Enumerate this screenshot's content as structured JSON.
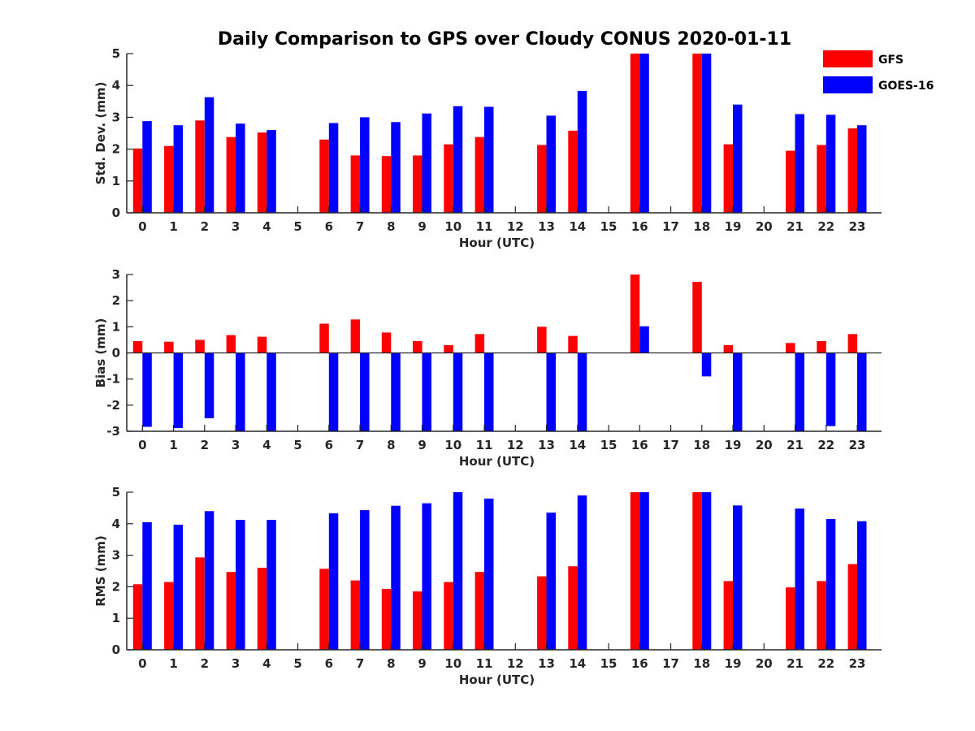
{
  "title": "Daily Comparison to GPS over Cloudy CONUS 2020-01-11",
  "legend": [
    {
      "name": "GFS",
      "color": "#ff0000"
    },
    {
      "name": "GOES-16",
      "color": "#0000ff"
    }
  ],
  "chart_data": [
    {
      "type": "bar",
      "categories": [
        "0",
        "1",
        "2",
        "3",
        "4",
        "5",
        "6",
        "7",
        "8",
        "9",
        "10",
        "11",
        "12",
        "13",
        "14",
        "15",
        "16",
        "17",
        "18",
        "19",
        "20",
        "21",
        "22",
        "23"
      ],
      "xlabel": "Hour (UTC)",
      "ylabel": "Std. Dev. (mm)",
      "ylim": [
        0,
        5
      ],
      "yticks": [
        0,
        1,
        2,
        3,
        4,
        5
      ],
      "series": [
        {
          "name": "GFS",
          "color": "#ff0000",
          "values": [
            2.02,
            2.1,
            2.9,
            2.38,
            2.52,
            null,
            2.3,
            1.8,
            1.78,
            1.8,
            2.15,
            2.38,
            null,
            2.13,
            2.58,
            null,
            5.0,
            null,
            5.0,
            2.15,
            null,
            1.95,
            2.13,
            2.65
          ]
        },
        {
          "name": "GOES-16",
          "color": "#0000ff",
          "values": [
            2.88,
            2.75,
            3.63,
            2.8,
            2.6,
            null,
            2.82,
            3.0,
            2.85,
            3.12,
            3.35,
            3.33,
            null,
            3.05,
            3.83,
            null,
            5.0,
            null,
            5.0,
            3.4,
            null,
            3.1,
            3.08,
            2.75
          ]
        }
      ]
    },
    {
      "type": "bar",
      "categories": [
        "0",
        "1",
        "2",
        "3",
        "4",
        "5",
        "6",
        "7",
        "8",
        "9",
        "10",
        "11",
        "12",
        "13",
        "14",
        "15",
        "16",
        "17",
        "18",
        "19",
        "20",
        "21",
        "22",
        "23"
      ],
      "xlabel": "Hour (UTC)",
      "ylabel": "Bias (mm)",
      "ylim": [
        -3,
        3
      ],
      "yticks": [
        -3,
        -2,
        -1,
        0,
        1,
        2,
        3
      ],
      "series": [
        {
          "name": "GFS",
          "color": "#ff0000",
          "values": [
            0.45,
            0.43,
            0.5,
            0.68,
            0.62,
            null,
            1.12,
            1.28,
            0.78,
            0.45,
            0.3,
            0.72,
            null,
            1.0,
            0.65,
            null,
            3.0,
            null,
            2.72,
            0.3,
            null,
            0.38,
            0.45,
            0.72
          ]
        },
        {
          "name": "GOES-16",
          "color": "#0000ff",
          "values": [
            -2.83,
            -2.88,
            -2.5,
            -3.0,
            -3.0,
            null,
            -3.0,
            -3.0,
            -3.0,
            -3.0,
            -3.0,
            -3.0,
            null,
            -3.0,
            -3.0,
            null,
            1.02,
            null,
            -0.9,
            -3.0,
            null,
            -3.0,
            -2.8,
            -3.0
          ]
        }
      ]
    },
    {
      "type": "bar",
      "categories": [
        "0",
        "1",
        "2",
        "3",
        "4",
        "5",
        "6",
        "7",
        "8",
        "9",
        "10",
        "11",
        "12",
        "13",
        "14",
        "15",
        "16",
        "17",
        "18",
        "19",
        "20",
        "21",
        "22",
        "23"
      ],
      "xlabel": "Hour (UTC)",
      "ylabel": "RMS (mm)",
      "ylim": [
        0,
        5
      ],
      "yticks": [
        0,
        1,
        2,
        3,
        4,
        5
      ],
      "series": [
        {
          "name": "GFS",
          "color": "#ff0000",
          "values": [
            2.08,
            2.15,
            2.93,
            2.47,
            2.6,
            null,
            2.57,
            2.2,
            1.93,
            1.85,
            2.15,
            2.47,
            null,
            2.33,
            2.65,
            null,
            5.0,
            null,
            5.0,
            2.18,
            null,
            1.98,
            2.18,
            2.72
          ]
        },
        {
          "name": "GOES-16",
          "color": "#0000ff",
          "values": [
            4.05,
            3.97,
            4.4,
            4.12,
            4.12,
            null,
            4.33,
            4.43,
            4.57,
            4.65,
            5.0,
            4.8,
            null,
            4.35,
            4.9,
            null,
            5.0,
            null,
            5.0,
            4.58,
            null,
            4.48,
            4.15,
            4.08
          ]
        }
      ]
    }
  ]
}
